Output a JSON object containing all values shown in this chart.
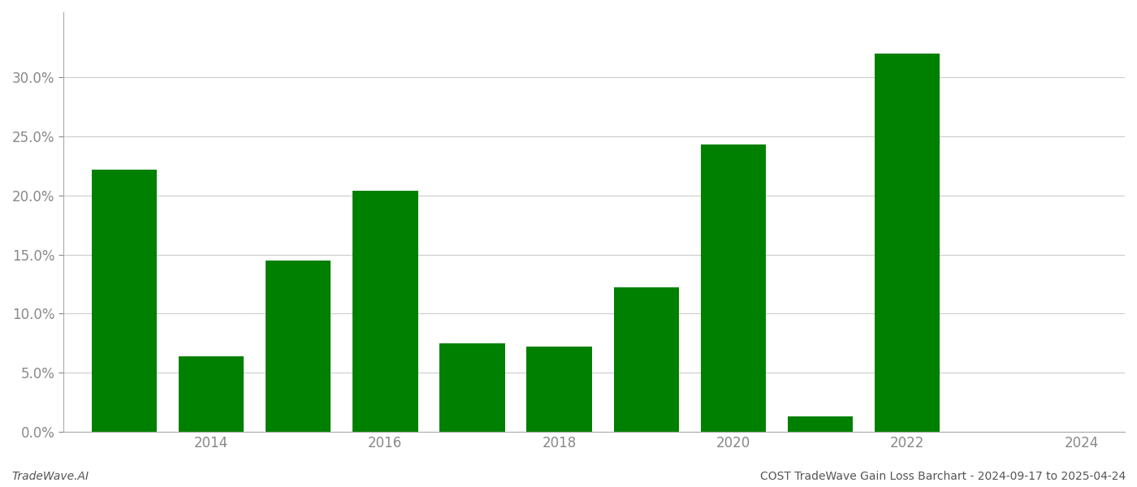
{
  "years": [
    2013,
    2014,
    2015,
    2016,
    2017,
    2018,
    2019,
    2020,
    2021,
    2022
  ],
  "values": [
    0.222,
    0.064,
    0.145,
    0.204,
    0.075,
    0.072,
    0.122,
    0.243,
    0.013,
    0.32
  ],
  "bar_color": "#008000",
  "background_color": "#ffffff",
  "ylim": [
    0,
    0.355
  ],
  "yticks": [
    0.0,
    0.05,
    0.1,
    0.15,
    0.2,
    0.25,
    0.3
  ],
  "grid_color": "#cccccc",
  "footer_left": "TradeWave.AI",
  "footer_right": "COST TradeWave Gain Loss Barchart - 2024-09-17 to 2025-04-24",
  "xtick_labels": [
    "2014",
    "2016",
    "2018",
    "2020",
    "2022",
    "2024"
  ],
  "bar_width": 0.75
}
